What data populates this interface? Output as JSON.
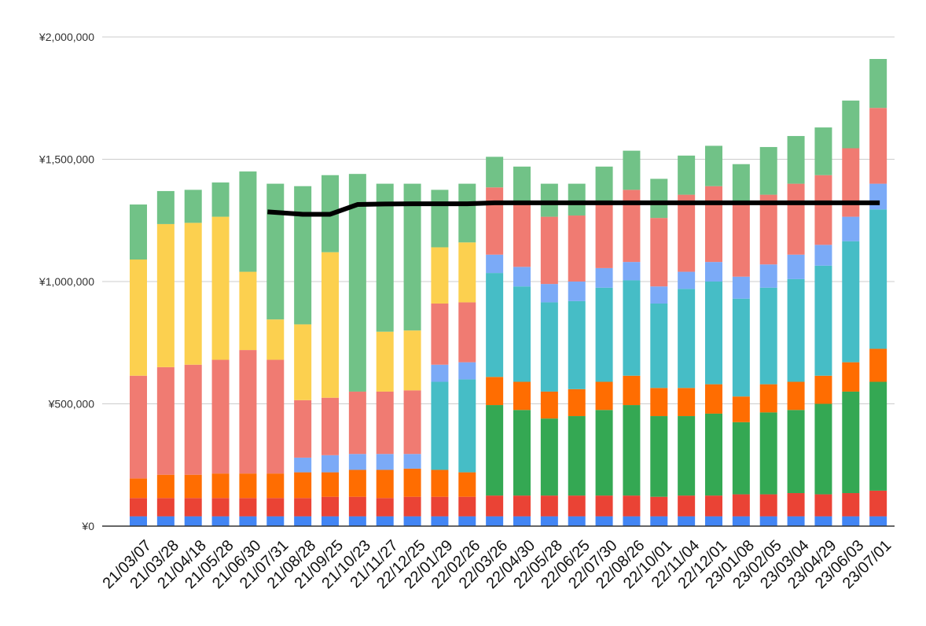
{
  "chart_data": {
    "type": "bar",
    "stacked": true,
    "categories": [
      "21/03/07",
      "21/03/28",
      "21/04/18",
      "21/05/28",
      "21/06/30",
      "21/07/31",
      "21/08/28",
      "21/09/25",
      "21/10/23",
      "21/11/27",
      "22/12/25",
      "22/01/29",
      "22/02/26",
      "22/03/26",
      "22/04/30",
      "22/05/28",
      "22/06/25",
      "22/07/30",
      "22/08/26",
      "22/10/01",
      "22/11/04",
      "22/12/01",
      "23/01/08",
      "23/02/05",
      "23/03/04",
      "23/04/29",
      "23/06/03",
      "23/07/01"
    ],
    "ylim": [
      0,
      2000000
    ],
    "yticks": [
      0,
      500000,
      1000000,
      1500000,
      2000000
    ],
    "ytick_labels": [
      "¥0",
      "¥500,000",
      "¥1,000,000",
      "¥1,500,000",
      "¥2,000,000"
    ],
    "grid": true,
    "legend": "none",
    "series": [
      {
        "color": "#4285f4",
        "values": [
          40000,
          40000,
          40000,
          40000,
          40000,
          40000,
          40000,
          40000,
          40000,
          40000,
          40000,
          40000,
          40000,
          40000,
          40000,
          40000,
          40000,
          40000,
          40000,
          40000,
          40000,
          40000,
          40000,
          40000,
          40000,
          40000,
          40000,
          40000
        ]
      },
      {
        "color": "#ea4335",
        "values": [
          75000,
          75000,
          75000,
          75000,
          75000,
          75000,
          75000,
          80000,
          80000,
          75000,
          80000,
          80000,
          80000,
          85000,
          85000,
          85000,
          85000,
          85000,
          85000,
          80000,
          85000,
          85000,
          90000,
          90000,
          95000,
          90000,
          95000,
          105000
        ]
      },
      {
        "color": "#34a853",
        "values": [
          0,
          0,
          0,
          0,
          0,
          0,
          0,
          0,
          0,
          0,
          0,
          0,
          0,
          370000,
          350000,
          315000,
          325000,
          350000,
          370000,
          330000,
          325000,
          335000,
          295000,
          335000,
          340000,
          370000,
          415000,
          445000
        ]
      },
      {
        "color": "#ff6d01",
        "values": [
          80000,
          95000,
          95000,
          100000,
          100000,
          100000,
          105000,
          100000,
          110000,
          115000,
          115000,
          110000,
          100000,
          115000,
          115000,
          110000,
          110000,
          115000,
          120000,
          115000,
          115000,
          120000,
          105000,
          115000,
          115000,
          115000,
          120000,
          135000
        ]
      },
      {
        "color": "#46bdc6",
        "values": [
          0,
          0,
          0,
          0,
          0,
          0,
          0,
          0,
          0,
          0,
          0,
          360000,
          380000,
          425000,
          390000,
          365000,
          360000,
          385000,
          390000,
          345000,
          405000,
          420000,
          400000,
          395000,
          420000,
          450000,
          495000,
          570000
        ]
      },
      {
        "color": "#7baaf7",
        "values": [
          0,
          0,
          0,
          0,
          0,
          0,
          60000,
          70000,
          65000,
          65000,
          60000,
          70000,
          70000,
          75000,
          80000,
          75000,
          80000,
          80000,
          75000,
          70000,
          70000,
          80000,
          90000,
          95000,
          100000,
          85000,
          100000,
          105000
        ]
      },
      {
        "color": "#f07b72",
        "values": [
          420000,
          440000,
          450000,
          465000,
          505000,
          465000,
          235000,
          235000,
          255000,
          255000,
          260000,
          250000,
          245000,
          275000,
          265000,
          275000,
          270000,
          270000,
          295000,
          280000,
          315000,
          310000,
          300000,
          285000,
          290000,
          285000,
          280000,
          310000
        ]
      },
      {
        "color": "#fcd04f",
        "values": [
          475000,
          585000,
          580000,
          585000,
          320000,
          165000,
          310000,
          595000,
          0,
          245000,
          245000,
          230000,
          245000,
          0,
          0,
          0,
          0,
          0,
          0,
          0,
          0,
          0,
          0,
          0,
          0,
          0,
          0,
          0
        ]
      },
      {
        "color": "#71c287",
        "values": [
          225000,
          135000,
          135000,
          140000,
          410000,
          555000,
          565000,
          315000,
          890000,
          605000,
          600000,
          235000,
          240000,
          125000,
          145000,
          135000,
          130000,
          145000,
          160000,
          160000,
          160000,
          165000,
          160000,
          195000,
          195000,
          195000,
          195000,
          200000
        ]
      }
    ],
    "line": {
      "color": "#000000",
      "start_index": 5,
      "values": [
        null,
        null,
        null,
        null,
        null,
        1285000,
        1275000,
        1275000,
        1315000,
        1317000,
        1318000,
        1318000,
        1318000,
        1322000,
        1322000,
        1322000,
        1322000,
        1322000,
        1322000,
        1322000,
        1322000,
        1322000,
        1322000,
        1322000,
        1322000,
        1322000,
        1322000,
        1322000
      ]
    }
  }
}
